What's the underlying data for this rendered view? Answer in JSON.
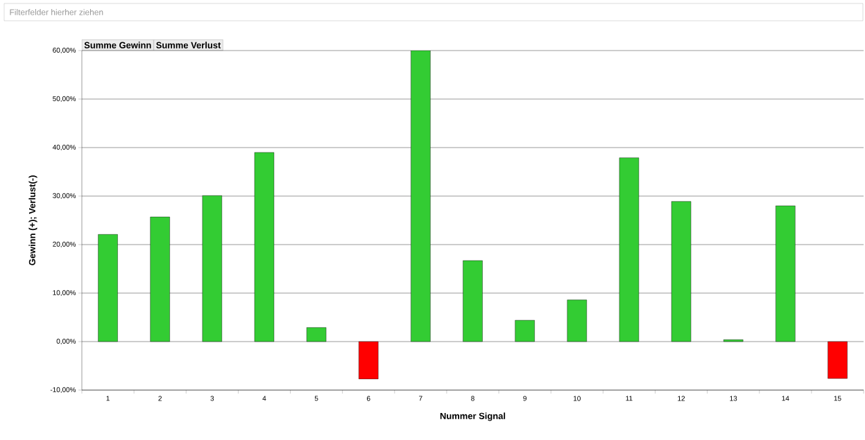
{
  "chart_data": {
    "type": "bar",
    "stacked": true,
    "xlabel": "Nummer Signal",
    "ylabel": "Gewinn (+); Verlust(-)",
    "annotations": [
      "Filterfelder hierher ziehen",
      "Summe Gewinn",
      "Summe Verlust"
    ],
    "categories": [
      "1",
      "2",
      "3",
      "4",
      "5",
      "6",
      "7",
      "8",
      "9",
      "10",
      "11",
      "12",
      "13",
      "14",
      "15"
    ],
    "series": [
      {
        "color": "#33cc33",
        "values": [
          22.1,
          25.7,
          30.1,
          39.0,
          2.9,
          null,
          60.0,
          16.7,
          4.4,
          8.6,
          37.9,
          28.9,
          0.4,
          28.0,
          null
        ]
      },
      {
        "color": "#ff0000",
        "values": [
          null,
          null,
          null,
          null,
          null,
          -7.7,
          null,
          null,
          null,
          null,
          null,
          null,
          null,
          null,
          -7.6
        ]
      }
    ],
    "ylim": [
      -10,
      60
    ],
    "yticks": [
      {
        "value": -10,
        "label": "-10,00%"
      },
      {
        "value": 0,
        "label": "0,00%"
      },
      {
        "value": 10,
        "label": "10,00%"
      },
      {
        "value": 20,
        "label": "20,00%"
      },
      {
        "value": 30,
        "label": "30,00%"
      },
      {
        "value": 40,
        "label": "40,00%"
      },
      {
        "value": 50,
        "label": "50,00%"
      },
      {
        "value": 60,
        "label": "60,00%"
      }
    ],
    "grid": "y"
  }
}
